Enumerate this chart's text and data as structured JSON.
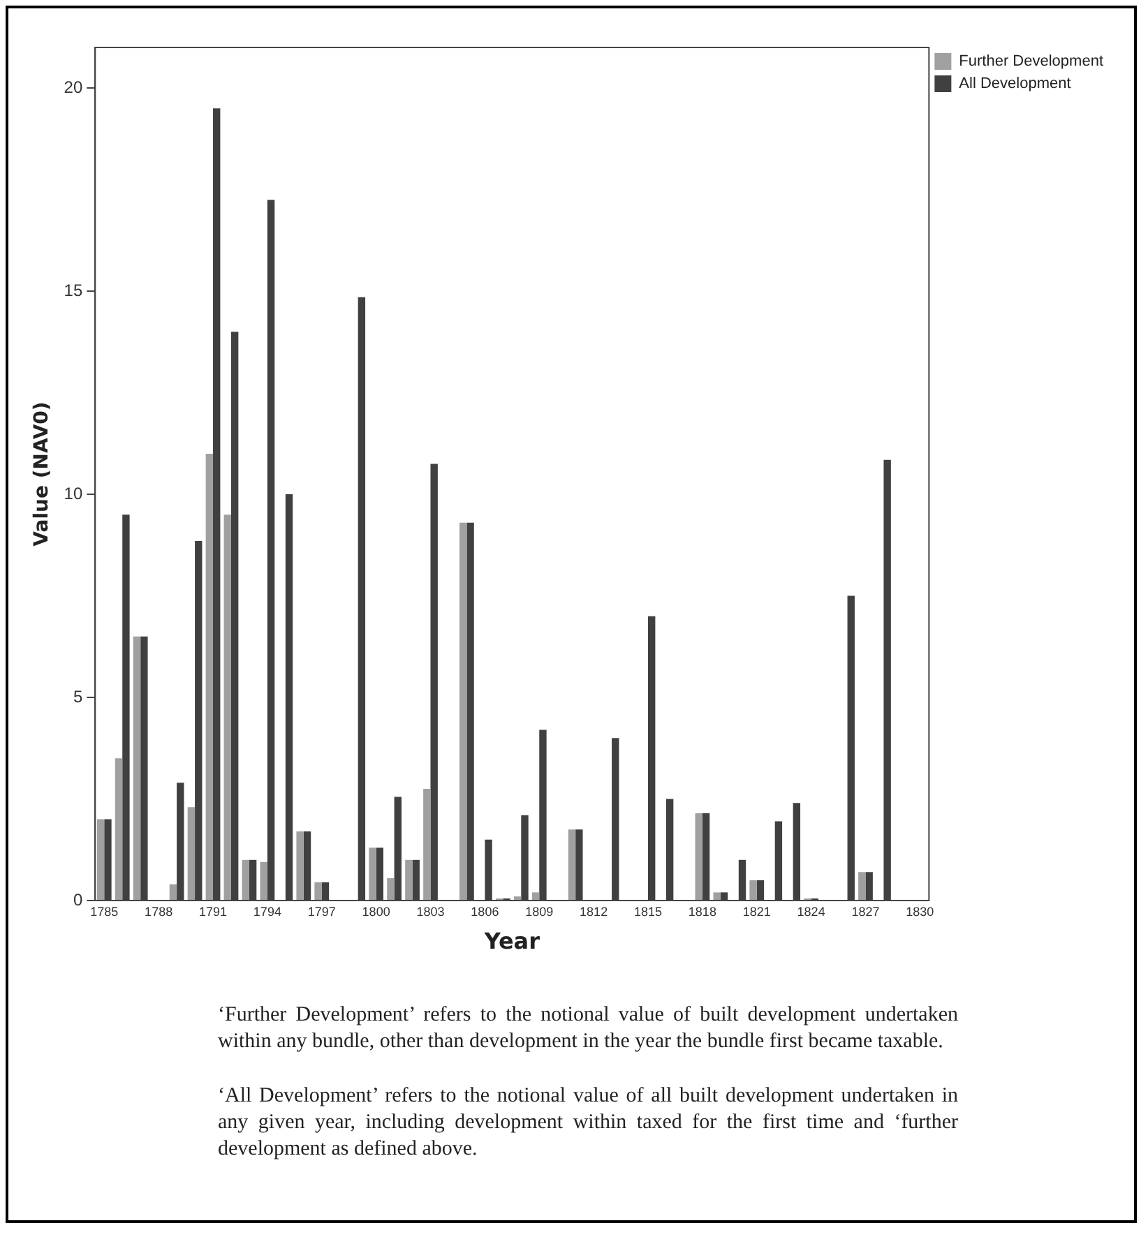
{
  "chart_data": {
    "type": "bar",
    "xlabel": "Year",
    "ylabel": "Value (NAV0)",
    "categories": [
      "1785",
      null,
      null,
      "1788",
      null,
      null,
      "1791",
      null,
      null,
      "1794",
      null,
      null,
      "1797",
      null,
      null,
      "1800",
      null,
      null,
      "1803",
      null,
      null,
      "1806",
      null,
      null,
      "1809",
      null,
      null,
      "1812",
      null,
      null,
      "1815",
      null,
      null,
      "1818",
      null,
      null,
      "1821",
      null,
      null,
      "1824",
      null,
      null,
      "1827",
      null,
      null,
      "1830"
    ],
    "series": [
      {
        "name": "Further Development",
        "color": "#a0a0a0",
        "values": [
          2.0,
          3.5,
          6.5,
          0,
          0.4,
          2.3,
          11.0,
          9.5,
          1.0,
          0.95,
          0,
          1.7,
          0.45,
          0,
          0,
          1.3,
          0.55,
          1.0,
          2.75,
          0,
          9.3,
          0,
          0.05,
          0.1,
          0.2,
          0,
          1.75,
          0,
          0,
          0,
          0,
          0,
          0,
          2.15,
          0.2,
          0,
          0.5,
          0,
          0,
          0.05,
          0,
          0,
          0.7,
          0,
          0,
          0
        ]
      },
      {
        "name": "All Development",
        "color": "#404040",
        "values": [
          2.0,
          9.5,
          6.5,
          0,
          2.9,
          8.85,
          19.5,
          14.0,
          1.0,
          17.25,
          10.0,
          1.7,
          0.45,
          0,
          14.85,
          1.3,
          2.55,
          1.0,
          10.75,
          0,
          9.3,
          1.5,
          0.05,
          2.1,
          4.2,
          0,
          1.75,
          0,
          4.0,
          0,
          7.0,
          2.5,
          0,
          2.15,
          0.2,
          1.0,
          0.5,
          1.95,
          2.4,
          0.05,
          0,
          7.5,
          0.7,
          10.85,
          0,
          0
        ]
      }
    ],
    "ylim": [
      0,
      21
    ],
    "yticks": [
      0,
      5,
      10,
      15,
      20
    ],
    "grid": false,
    "legend": "top right",
    "annotations": [
      "‘Further Development’ refers to the notional value of built development undertaken within any bundle, other than development in the year the bundle first became taxable.",
      "‘All Development’ refers to the notional value of all built development undertaken in any given year, including development within taxed for the first time and ‘further development as defined above."
    ]
  }
}
